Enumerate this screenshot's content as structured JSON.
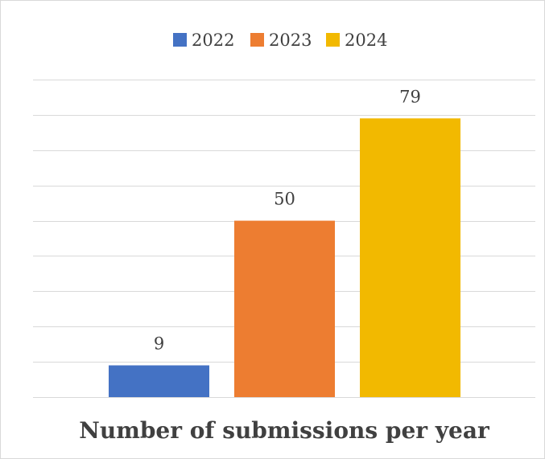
{
  "chart_data": {
    "type": "bar",
    "title": "Number of submissions per year",
    "categories": [
      "2022",
      "2023",
      "2024"
    ],
    "values": [
      9,
      50,
      79
    ],
    "series": [
      {
        "name": "2022",
        "value": 9,
        "color": "#4472C4"
      },
      {
        "name": "2023",
        "value": 50,
        "color": "#ED7D31"
      },
      {
        "name": "2024",
        "value": 79,
        "color": "#F2B900"
      }
    ],
    "ylim": [
      0,
      90
    ],
    "grid": true,
    "legend_position": "top",
    "data_labels": true,
    "xlabel": "",
    "ylabel": ""
  }
}
